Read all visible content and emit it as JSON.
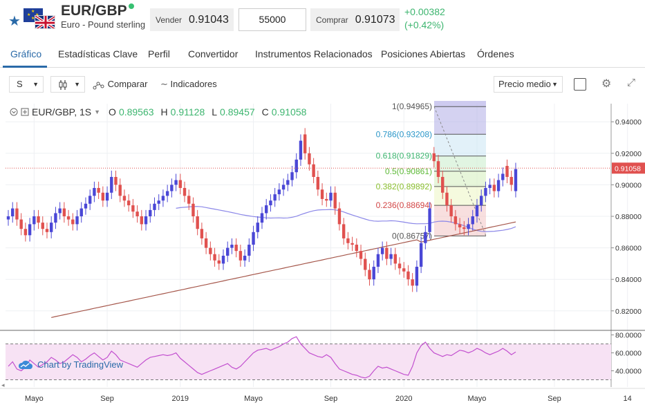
{
  "header": {
    "pair": "EUR/GBP",
    "pair_name": "Euro - Pound sterling",
    "sell_label": "Vender",
    "sell_price": "0.91043",
    "amount": "55000",
    "buy_label": "Comprar",
    "buy_price": "0.91073",
    "change": "+0.00382",
    "change_pct": "(+0.42%)"
  },
  "tabs": [
    "Gráfico",
    "Estadísticas Clave",
    "Perfil",
    "Convertidor",
    "Instrumentos Relacionados",
    "Posiciones Abiertas",
    "Órdenes"
  ],
  "toolbar": {
    "interval": "S",
    "compare": "Comparar",
    "indicators": "Indicadores",
    "price_mode": "Precio medio"
  },
  "legend": {
    "symbol": "EUR/GBP, 1S",
    "o_label": "O",
    "o": "0.89563",
    "h_label": "H",
    "h": "0.91128",
    "l_label": "L",
    "l": "0.89457",
    "c_label": "C",
    "c": "0.91058"
  },
  "watermark": "Chart by TradingView",
  "colors": {
    "up": "#4a47d6",
    "down": "#e0514f",
    "ma1": "#8b87e8",
    "ma2": "#a5564a",
    "rsi": "#c24fcf",
    "accent": "#2a6aa8",
    "positive": "#3db56f"
  },
  "chart_data": {
    "type": "candlestick",
    "y_axis_labels": [
      "0.94000",
      "0.92000",
      "0.90000",
      "0.88000",
      "0.86000",
      "0.84000",
      "0.82000"
    ],
    "y_ticks": [
      0.94,
      0.92,
      0.9,
      0.88,
      0.86,
      0.84,
      0.82
    ],
    "ylim": [
      0.8085,
      0.9515
    ],
    "current_price": "0.91058",
    "x_axis_labels": [
      "Mayo",
      "Sep",
      "2019",
      "Mayo",
      "Sep",
      "2020",
      "Mayo",
      "Sep",
      "14"
    ],
    "x_tick_weeks": [
      6,
      23,
      40,
      57,
      75,
      92,
      109,
      127,
      144
    ],
    "fib_levels": [
      {
        "ratio": "1",
        "price": 0.94965,
        "label": "1(0.94965)"
      },
      {
        "ratio": "0.786",
        "price": 0.93208,
        "label": "0.786(0.93208)"
      },
      {
        "ratio": "0.618",
        "price": 0.91829,
        "label": "0.618(0.91829)"
      },
      {
        "ratio": "0.5",
        "price": 0.90861,
        "label": "0.5(0.90861)"
      },
      {
        "ratio": "0.382",
        "price": 0.89892,
        "label": "0.382(0.89892)"
      },
      {
        "ratio": "0.236",
        "price": 0.88694,
        "label": "0.236(0.88694)"
      },
      {
        "ratio": "0",
        "price": 0.86757,
        "label": "0(0.86757)"
      }
    ],
    "weekly_close": [
      0.88,
      0.885,
      0.878,
      0.872,
      0.868,
      0.875,
      0.88,
      0.876,
      0.872,
      0.87,
      0.876,
      0.882,
      0.885,
      0.88,
      0.878,
      0.875,
      0.88,
      0.885,
      0.888,
      0.893,
      0.898,
      0.895,
      0.89,
      0.895,
      0.905,
      0.9,
      0.893,
      0.89,
      0.887,
      0.883,
      0.88,
      0.875,
      0.88,
      0.884,
      0.888,
      0.89,
      0.893,
      0.896,
      0.9,
      0.903,
      0.898,
      0.893,
      0.888,
      0.88,
      0.872,
      0.866,
      0.86,
      0.856,
      0.852,
      0.85,
      0.855,
      0.86,
      0.862,
      0.858,
      0.852,
      0.855,
      0.862,
      0.87,
      0.876,
      0.882,
      0.887,
      0.89,
      0.894,
      0.897,
      0.9,
      0.903,
      0.908,
      0.916,
      0.928,
      0.92,
      0.913,
      0.905,
      0.897,
      0.891,
      0.89,
      0.895,
      0.885,
      0.875,
      0.866,
      0.863,
      0.862,
      0.858,
      0.853,
      0.846,
      0.84,
      0.848,
      0.856,
      0.86,
      0.853,
      0.856,
      0.85,
      0.847,
      0.845,
      0.84,
      0.836,
      0.848,
      0.863,
      0.87,
      0.885,
      0.915,
      0.905,
      0.895,
      0.887,
      0.88,
      0.875,
      0.873,
      0.872,
      0.875,
      0.88,
      0.887,
      0.893,
      0.898,
      0.9,
      0.896,
      0.903,
      0.907,
      0.905,
      0.9,
      0.91
    ],
    "weekly_open": [
      0.878,
      0.88,
      0.885,
      0.878,
      0.872,
      0.868,
      0.875,
      0.88,
      0.876,
      0.872,
      0.87,
      0.876,
      0.882,
      0.885,
      0.88,
      0.878,
      0.875,
      0.88,
      0.885,
      0.888,
      0.893,
      0.898,
      0.895,
      0.89,
      0.895,
      0.905,
      0.9,
      0.893,
      0.89,
      0.887,
      0.883,
      0.88,
      0.875,
      0.88,
      0.884,
      0.888,
      0.89,
      0.893,
      0.896,
      0.9,
      0.903,
      0.898,
      0.893,
      0.888,
      0.88,
      0.872,
      0.866,
      0.86,
      0.856,
      0.852,
      0.85,
      0.855,
      0.86,
      0.862,
      0.858,
      0.852,
      0.855,
      0.862,
      0.87,
      0.876,
      0.882,
      0.887,
      0.89,
      0.894,
      0.897,
      0.9,
      0.903,
      0.908,
      0.916,
      0.932,
      0.92,
      0.913,
      0.905,
      0.897,
      0.891,
      0.89,
      0.895,
      0.885,
      0.875,
      0.866,
      0.863,
      0.862,
      0.858,
      0.853,
      0.846,
      0.84,
      0.848,
      0.856,
      0.86,
      0.853,
      0.856,
      0.85,
      0.847,
      0.845,
      0.84,
      0.836,
      0.848,
      0.863,
      0.87,
      0.92,
      0.915,
      0.905,
      0.895,
      0.887,
      0.88,
      0.875,
      0.873,
      0.872,
      0.875,
      0.88,
      0.887,
      0.893,
      0.898,
      0.9,
      0.896,
      0.903,
      0.912,
      0.905,
      0.896
    ],
    "rsi_axis_labels": [
      "80.0000",
      "60.0000",
      "40.0000"
    ],
    "rsi_ticks": [
      80,
      60,
      40
    ],
    "rsi_levels": [
      70,
      30
    ],
    "rsi": [
      45,
      50,
      42,
      40,
      44,
      52,
      48,
      44,
      47,
      50,
      55,
      52,
      48,
      50,
      54,
      58,
      55,
      50,
      53,
      57,
      60,
      56,
      52,
      55,
      62,
      58,
      52,
      50,
      48,
      46,
      44,
      48,
      52,
      55,
      56,
      57,
      58,
      57,
      58,
      60,
      54,
      50,
      46,
      42,
      38,
      36,
      38,
      40,
      42,
      44,
      46,
      48,
      44,
      42,
      45,
      50,
      55,
      60,
      63,
      64,
      65,
      63,
      65,
      67,
      70,
      72,
      76,
      78,
      70,
      65,
      60,
      58,
      56,
      55,
      58,
      55,
      48,
      42,
      40,
      38,
      36,
      35,
      33,
      32,
      34,
      40,
      45,
      43,
      44,
      42,
      40,
      38,
      36,
      35,
      45,
      60,
      68,
      72,
      65,
      60,
      58,
      56,
      58,
      57,
      60,
      63,
      62,
      60,
      62,
      65,
      63,
      60,
      58,
      60,
      62,
      65,
      62,
      58,
      61
    ]
  }
}
